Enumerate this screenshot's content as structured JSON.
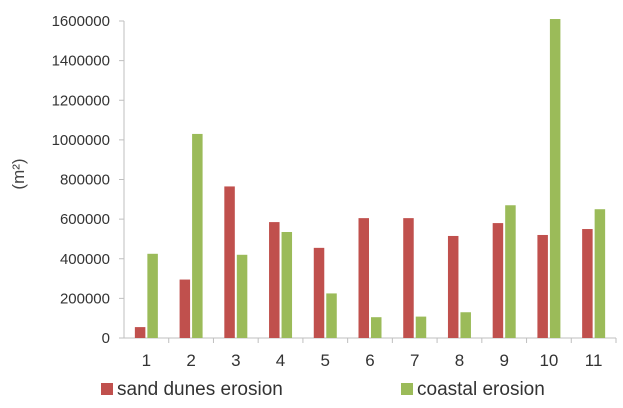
{
  "chart_data": {
    "type": "bar",
    "categories": [
      "1",
      "2",
      "3",
      "4",
      "5",
      "6",
      "7",
      "8",
      "9",
      "10",
      "11"
    ],
    "series": [
      {
        "name": "sand dunes erosion",
        "color": "#c0504d",
        "values": [
          55000,
          295000,
          765000,
          585000,
          455000,
          605000,
          605000,
          515000,
          580000,
          520000,
          550000
        ]
      },
      {
        "name": "coastal erosion",
        "color": "#9bbb59",
        "values": [
          425000,
          1030000,
          420000,
          535000,
          225000,
          105000,
          108000,
          130000,
          670000,
          1610000,
          650000
        ]
      }
    ],
    "yticks": [
      "0",
      "200000",
      "400000",
      "600000",
      "800000",
      "1000000",
      "1200000",
      "1400000",
      "1600000"
    ],
    "ylim": [
      0,
      1600000
    ],
    "ylabel": "(m²)",
    "xlabel": "",
    "title": "",
    "legend": "bottom",
    "grid": false
  }
}
